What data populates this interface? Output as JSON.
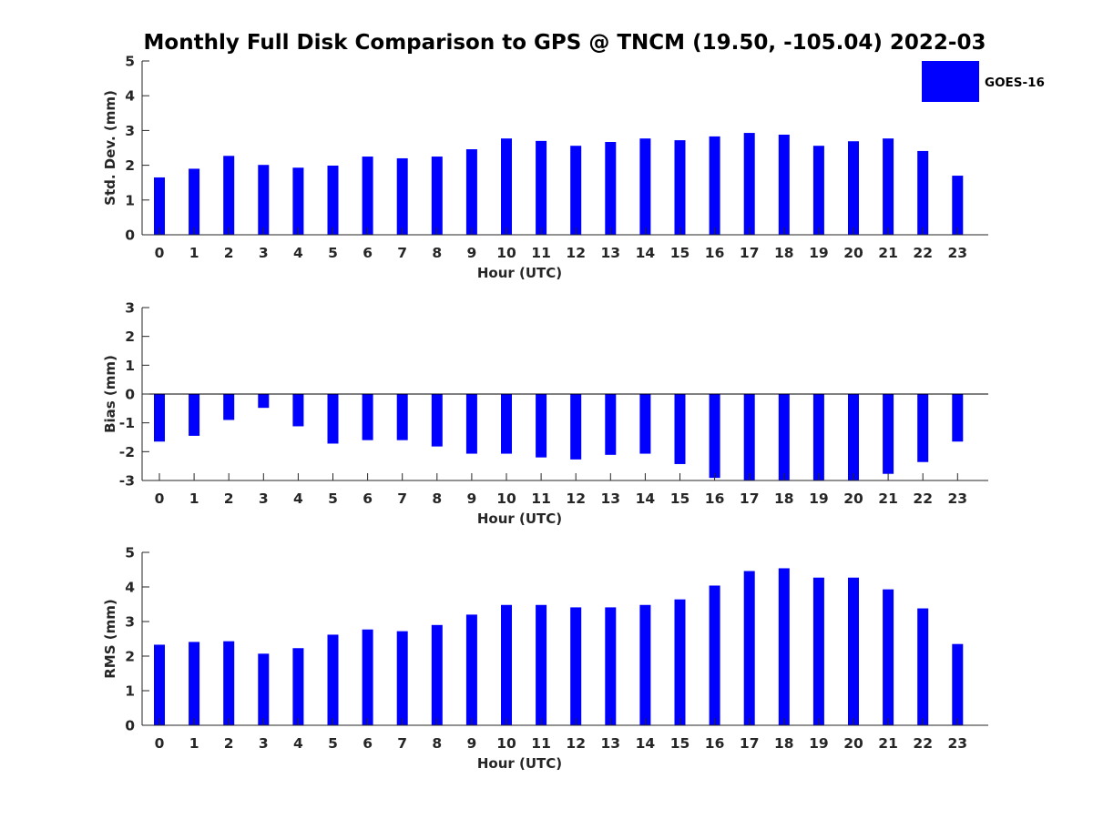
{
  "title": "Monthly Full Disk Comparison to GPS @ TNCM (19.50, -105.04) 2022-03",
  "colors": {
    "bar": "#0000ff",
    "axis": "#262626",
    "text": "#000000"
  },
  "legend": {
    "label": "GOES-16",
    "placement": "top-right"
  },
  "chart_data": [
    {
      "type": "bar",
      "xlabel": "Hour (UTC)",
      "ylabel": "Std. Dev. (mm)",
      "ylim": [
        0,
        5
      ],
      "yticks": [
        0,
        1,
        2,
        3,
        4,
        5
      ],
      "categories": [
        "0",
        "1",
        "2",
        "3",
        "4",
        "5",
        "6",
        "7",
        "8",
        "9",
        "10",
        "11",
        "12",
        "13",
        "14",
        "15",
        "16",
        "17",
        "18",
        "19",
        "20",
        "21",
        "22",
        "23"
      ],
      "series": [
        {
          "name": "GOES-16",
          "values": [
            1.65,
            1.9,
            2.27,
            2.01,
            1.93,
            1.99,
            2.25,
            2.2,
            2.25,
            2.46,
            2.77,
            2.7,
            2.56,
            2.67,
            2.77,
            2.72,
            2.83,
            2.93,
            2.88,
            2.56,
            2.69,
            2.77,
            2.41,
            1.7
          ]
        }
      ],
      "grid": false
    },
    {
      "type": "bar",
      "xlabel": "Hour (UTC)",
      "ylabel": "Bias (mm)",
      "ylim": [
        -3,
        3
      ],
      "yticks": [
        -3,
        -2,
        -1,
        0,
        1,
        2,
        3
      ],
      "categories": [
        "0",
        "1",
        "2",
        "3",
        "4",
        "5",
        "6",
        "7",
        "8",
        "9",
        "10",
        "11",
        "12",
        "13",
        "14",
        "15",
        "16",
        "17",
        "18",
        "19",
        "20",
        "21",
        "22",
        "23"
      ],
      "series": [
        {
          "name": "GOES-16",
          "values": [
            -1.65,
            -1.45,
            -0.9,
            -0.48,
            -1.12,
            -1.72,
            -1.6,
            -1.6,
            -1.82,
            -2.07,
            -2.07,
            -2.2,
            -2.27,
            -2.11,
            -2.07,
            -2.43,
            -2.91,
            -3.0,
            -3.0,
            -3.0,
            -3.0,
            -2.77,
            -2.36,
            -1.65
          ]
        }
      ],
      "grid": false
    },
    {
      "type": "bar",
      "xlabel": "Hour (UTC)",
      "ylabel": "RMS (mm)",
      "ylim": [
        0,
        5
      ],
      "yticks": [
        0,
        1,
        2,
        3,
        4,
        5
      ],
      "categories": [
        "0",
        "1",
        "2",
        "3",
        "4",
        "5",
        "6",
        "7",
        "8",
        "9",
        "10",
        "11",
        "12",
        "13",
        "14",
        "15",
        "16",
        "17",
        "18",
        "19",
        "20",
        "21",
        "22",
        "23"
      ],
      "series": [
        {
          "name": "GOES-16",
          "values": [
            2.33,
            2.41,
            2.43,
            2.07,
            2.23,
            2.62,
            2.77,
            2.72,
            2.9,
            3.2,
            3.48,
            3.48,
            3.41,
            3.41,
            3.48,
            3.64,
            4.04,
            4.46,
            4.54,
            4.27,
            4.27,
            3.93,
            3.38,
            2.35
          ]
        }
      ],
      "grid": false
    }
  ]
}
